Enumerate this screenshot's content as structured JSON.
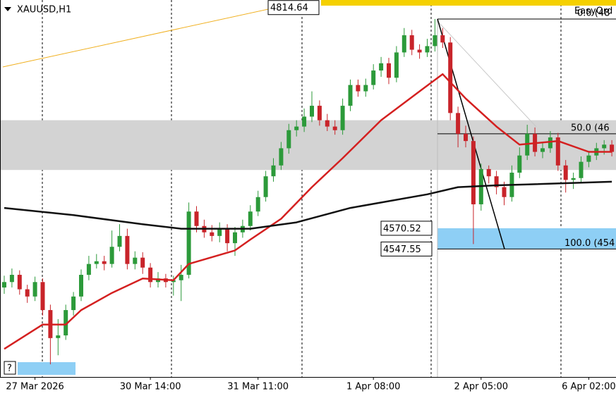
{
  "chart_data": {
    "type": "candlestick",
    "title": "XAUUSD,H1",
    "ylim": [
      4406,
      4823
    ],
    "up_color": "#2c9a3a",
    "down_color": "#c8242a",
    "xticks": [
      {
        "value": 4,
        "label": "27 Mar 2026"
      },
      {
        "value": 19,
        "label": "30 Mar 14:00"
      },
      {
        "value": 33,
        "label": "31 Mar 11:00"
      },
      {
        "value": 48,
        "label": "1 Apr 08:00"
      },
      {
        "value": 62,
        "label": "2 Apr 05:00"
      },
      {
        "value": 76,
        "label": "6 Apr 02:00"
      }
    ],
    "candles": [
      [
        4505,
        4518,
        4498,
        4511
      ],
      [
        4511,
        4526,
        4505,
        4519
      ],
      [
        4519,
        4524,
        4497,
        4503
      ],
      [
        4503,
        4508,
        4488,
        4495
      ],
      [
        4495,
        4517,
        4490,
        4511
      ],
      [
        4511,
        4515,
        4474,
        4480
      ],
      [
        4480,
        4486,
        4420,
        4449
      ],
      [
        4449,
        4470,
        4430,
        4452
      ],
      [
        4452,
        4486,
        4447,
        4480
      ],
      [
        4480,
        4500,
        4474,
        4495
      ],
      [
        4495,
        4525,
        4490,
        4519
      ],
      [
        4519,
        4540,
        4513,
        4531
      ],
      [
        4531,
        4542,
        4526,
        4534
      ],
      [
        4534,
        4540,
        4524,
        4531
      ],
      [
        4531,
        4568,
        4527,
        4550
      ],
      [
        4550,
        4575,
        4545,
        4562
      ],
      [
        4562,
        4570,
        4525,
        4531
      ],
      [
        4531,
        4545,
        4525,
        4538
      ],
      [
        4538,
        4544,
        4520,
        4527
      ],
      [
        4527,
        4532,
        4505,
        4511
      ],
      [
        4511,
        4522,
        4505,
        4515
      ],
      [
        4515,
        4520,
        4505,
        4511
      ],
      [
        4511,
        4518,
        4496,
        4513
      ],
      [
        4513,
        4530,
        4490,
        4519
      ],
      [
        4519,
        4599,
        4515,
        4589
      ],
      [
        4589,
        4595,
        4566,
        4573
      ],
      [
        4573,
        4580,
        4560,
        4566
      ],
      [
        4566,
        4574,
        4556,
        4562
      ],
      [
        4562,
        4577,
        4555,
        4570
      ],
      [
        4570,
        4575,
        4545,
        4554
      ],
      [
        4554,
        4572,
        4540,
        4566
      ],
      [
        4566,
        4580,
        4560,
        4573
      ],
      [
        4573,
        4596,
        4568,
        4589
      ],
      [
        4589,
        4612,
        4584,
        4605
      ],
      [
        4605,
        4634,
        4600,
        4628
      ],
      [
        4628,
        4648,
        4622,
        4640
      ],
      [
        4640,
        4666,
        4635,
        4659
      ],
      [
        4659,
        4686,
        4653,
        4679
      ],
      [
        4679,
        4690,
        4672,
        4683
      ],
      [
        4683,
        4703,
        4677,
        4694
      ],
      [
        4694,
        4722,
        4688,
        4706
      ],
      [
        4706,
        4712,
        4684,
        4690
      ],
      [
        4690,
        4697,
        4678,
        4683
      ],
      [
        4683,
        4690,
        4674,
        4679
      ],
      [
        4679,
        4714,
        4674,
        4706
      ],
      [
        4706,
        4735,
        4700,
        4729
      ],
      [
        4729,
        4735,
        4716,
        4722
      ],
      [
        4722,
        4736,
        4716,
        4729
      ],
      [
        4729,
        4752,
        4724,
        4745
      ],
      [
        4745,
        4760,
        4738,
        4753
      ],
      [
        4753,
        4759,
        4730,
        4737
      ],
      [
        4737,
        4772,
        4732,
        4765
      ],
      [
        4765,
        4792,
        4760,
        4784
      ],
      [
        4784,
        4790,
        4762,
        4768
      ],
      [
        4768,
        4774,
        4758,
        4765
      ],
      [
        4765,
        4780,
        4760,
        4772
      ],
      [
        4772,
        4802,
        4766,
        4784
      ],
      [
        4784,
        4792,
        4770,
        4776
      ],
      [
        4776,
        4782,
        4690,
        4698
      ],
      [
        4698,
        4705,
        4660,
        4675
      ],
      [
        4675,
        4684,
        4660,
        4667
      ],
      [
        4667,
        4672,
        4553,
        4597
      ],
      [
        4597,
        4642,
        4590,
        4636
      ],
      [
        4636,
        4640,
        4620,
        4628
      ],
      [
        4628,
        4634,
        4608,
        4616
      ],
      [
        4616,
        4622,
        4596,
        4605
      ],
      [
        4605,
        4640,
        4600,
        4632
      ],
      [
        4632,
        4660,
        4626,
        4651
      ],
      [
        4651,
        4685,
        4646,
        4675
      ],
      [
        4675,
        4682,
        4650,
        4655
      ],
      [
        4655,
        4666,
        4648,
        4659
      ],
      [
        4659,
        4678,
        4654,
        4671
      ],
      [
        4671,
        4676,
        4634,
        4640
      ],
      [
        4640,
        4646,
        4610,
        4624
      ],
      [
        4624,
        4632,
        4614,
        4626
      ],
      [
        4626,
        4650,
        4620,
        4644
      ],
      [
        4644,
        4656,
        4638,
        4651
      ],
      [
        4651,
        4665,
        4646,
        4659
      ],
      [
        4659,
        4668,
        4652,
        4663
      ],
      [
        4663,
        4668,
        4650,
        4655
      ]
    ],
    "lines": [
      {
        "color": "#d42020",
        "x": [
          0,
          5,
          8,
          10,
          14,
          18,
          22,
          24,
          30,
          32,
          36,
          40,
          44,
          49,
          54,
          57,
          60,
          64,
          67,
          72,
          76,
          79
        ],
        "values": [
          4437,
          4464,
          4464,
          4480,
          4499,
          4515,
          4513,
          4531,
          4546,
          4558,
          4581,
          4616,
          4648,
          4690,
          4722,
          4741,
          4714,
          4683,
          4663,
          4667,
          4655,
          4655
        ]
      },
      {
        "color": "#111111",
        "x": [
          0,
          9,
          18,
          23,
          32,
          38,
          45,
          55,
          59,
          64,
          68,
          79
        ],
        "values": [
          4593,
          4585,
          4575,
          4570,
          4570,
          4577,
          4593,
          4608,
          4616,
          4618,
          4619,
          4622
        ]
      }
    ],
    "zone": [
      4635,
      4690
    ],
    "price_labels": [
      4814.64,
      4570.52,
      4547.55
    ],
    "fib_labels": [
      {
        "value": 4802,
        "label": "0.0 (48"
      },
      {
        "value": 4675,
        "label": "50.0 (46"
      },
      {
        "value": 4547.55,
        "label": "100.0 (454"
      }
    ],
    "overlay_text": "EasyOrd",
    "help_label": "?"
  }
}
